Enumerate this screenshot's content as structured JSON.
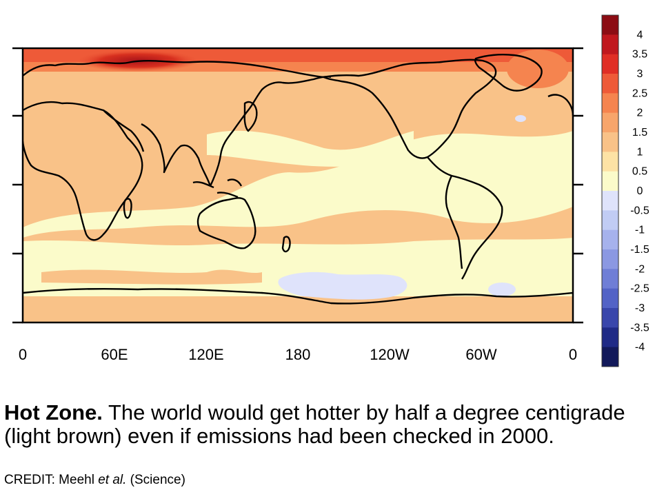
{
  "map": {
    "longitude_labels": [
      "0",
      "60E",
      "120E",
      "180",
      "120W",
      "60W",
      "0"
    ],
    "colorbar": {
      "labels": [
        "4",
        "3.5",
        "3",
        "2.5",
        "2",
        "1.5",
        "1",
        "0.5",
        "0",
        "-0.5",
        "-1",
        "-1.5",
        "-2",
        "-2.5",
        "-3",
        "-3.5",
        "-4"
      ],
      "colors": [
        "#8c0d14",
        "#c0181e",
        "#e02e25",
        "#ee5a38",
        "#f5844f",
        "#f7a56b",
        "#f9c288",
        "#fde2a5",
        "#fbfbca",
        "#dfe3fb",
        "#c1ccf4",
        "#a6b2ec",
        "#8b98e2",
        "#6f7ed6",
        "#5363c6",
        "#3946ab",
        "#1f2a86",
        "#12195a"
      ]
    },
    "colors": {
      "warm_band": "#f9c288",
      "pale_band": "#fbfbca",
      "cool_patch": "#dfe3fb",
      "hot_arctic": "#ee5a38",
      "coastline": "#000000"
    }
  },
  "caption": {
    "title": "Hot Zone.",
    "text": " The world would get hotter by half a degree centigrade (light brown) even if emissions had been checked in 2000."
  },
  "credit": {
    "prefix": "CREDIT: Meehl ",
    "etal": "et al.",
    "source": " (Science)"
  }
}
